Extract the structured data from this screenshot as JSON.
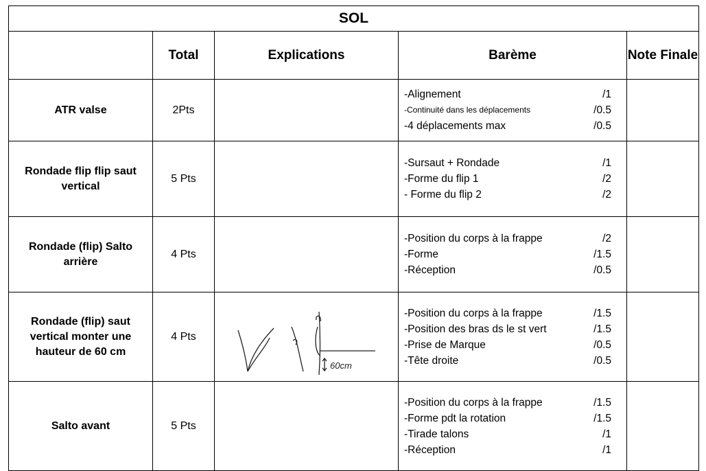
{
  "title": "SOL",
  "header": {
    "col1": "",
    "total": "Total",
    "explications": "Explications",
    "bareme": "Barème",
    "note_finale": "Note Finale"
  },
  "rows": [
    {
      "element": "ATR valse",
      "total": "2Pts",
      "bareme": [
        {
          "text": "-Alignement",
          "score": "/1"
        },
        {
          "text": "-Continuité dans les déplacements",
          "score": "/0.5"
        },
        {
          "text": "-4 déplacements max",
          "score": "/0.5"
        }
      ]
    },
    {
      "element": "Rondade flip flip saut vertical",
      "total": "5 Pts",
      "bareme": [
        {
          "text": "-Sursaut + Rondade",
          "score": "/1"
        },
        {
          "text": "-Forme du flip 1",
          "score": "/2"
        },
        {
          "text": "- Forme du flip 2",
          "score": "/2"
        }
      ]
    },
    {
      "element": "Rondade (flip) Salto arrière",
      "total": "4 Pts",
      "bareme": [
        {
          "text": "-Position du corps à la frappe",
          "score": "/2"
        },
        {
          "text": "-Forme",
          "score": "/1.5"
        },
        {
          "text": "-Réception",
          "score": "/0.5"
        }
      ]
    },
    {
      "element": "Rondade (flip) saut vertical monter une hauteur de 60 cm",
      "total": "4 Pts",
      "sketch_label": "60cm",
      "bareme": [
        {
          "text": "-Position du corps à la frappe",
          "score": "/1.5"
        },
        {
          "text": "-Position des bras ds le st vert",
          "score": "/1.5"
        },
        {
          "text": "-Prise de Marque",
          "score": "/0.5"
        },
        {
          "text": "-Tête droite",
          "score": "/0.5"
        }
      ]
    },
    {
      "element": "Salto avant",
      "total": "5 Pts",
      "bareme": [
        {
          "text": "-Position du corps à la frappe",
          "score": "/1.5"
        },
        {
          "text": "-Forme pdt la rotation",
          "score": "/1.5"
        },
        {
          "text": "-Tirade talons",
          "score": "/1"
        },
        {
          "text": "-Réception",
          "score": "/1"
        }
      ]
    }
  ]
}
